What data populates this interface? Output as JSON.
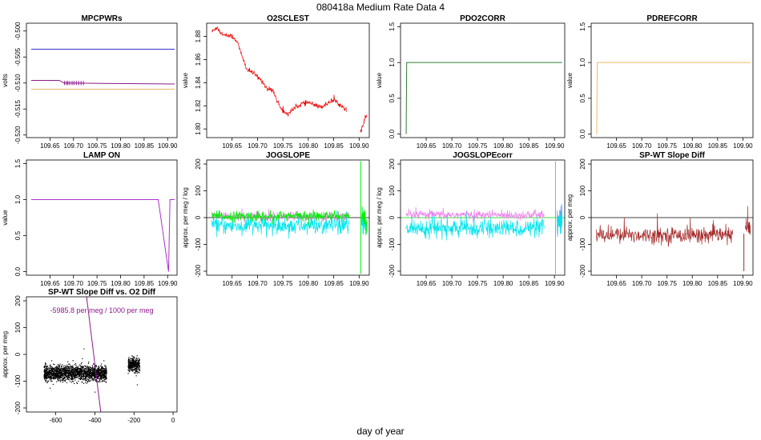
{
  "figure": {
    "title": "080418a   Medium Rate Data 4",
    "xlabel": "day of year"
  },
  "chart_data": [
    {
      "id": "mpcpwrs",
      "type": "line",
      "title": "MPCPWRs",
      "ylabel": "volts",
      "xlim": [
        109.6,
        109.92
      ],
      "ylim": [
        -0.5205,
        -0.4985
      ],
      "xticks": [
        109.65,
        109.7,
        109.75,
        109.8,
        109.85,
        109.9
      ],
      "xtick_labels": [
        "109.65",
        "109.70",
        "109.75",
        "109.80",
        "109.85",
        "109.90"
      ],
      "yticks": [
        -0.52,
        -0.515,
        -0.51,
        -0.505,
        -0.5
      ],
      "ytick_labels": [
        "-0.520",
        "-0.515",
        "-0.510",
        "-0.505",
        "-0.500"
      ],
      "series": [
        {
          "color": "#3333cc",
          "points": [
            [
              109.61,
              -0.5035
            ],
            [
              109.915,
              -0.5035
            ]
          ]
        },
        {
          "color": "#8b1a8b",
          "points": [
            [
              109.61,
              -0.5095
            ],
            [
              109.66,
              -0.5095
            ],
            [
              109.67,
              -0.5095
            ],
            [
              109.68,
              -0.51
            ],
            [
              109.915,
              -0.5102
            ]
          ]
        },
        {
          "color": "#f4b860",
          "points": [
            [
              109.61,
              -0.5112
            ],
            [
              109.915,
              -0.5112
            ]
          ]
        }
      ],
      "spikes": {
        "color": "#8b1a8b",
        "from": -0.5096,
        "to": -0.5104,
        "x": [
          109.681,
          109.685,
          109.688,
          109.692,
          109.697,
          109.701,
          109.706,
          109.711,
          109.716,
          109.721
        ]
      }
    },
    {
      "id": "o2sclest",
      "type": "line",
      "title": "O2SCLEST",
      "ylabel": "value",
      "xlim": [
        109.6,
        109.92
      ],
      "ylim": [
        1.7925,
        1.8915
      ],
      "xticks": [
        109.65,
        109.7,
        109.75,
        109.8,
        109.85,
        109.9
      ],
      "xtick_labels": [
        "109.65",
        "109.70",
        "109.75",
        "109.80",
        "109.85",
        "109.90"
      ],
      "yticks": [
        1.8,
        1.82,
        1.84,
        1.86,
        1.88
      ],
      "ytick_labels": [
        "1.80",
        "1.82",
        "1.84",
        "1.86",
        "1.88"
      ],
      "series": [
        {
          "color": "#ee0000",
          "noise": 0.0018,
          "points": [
            [
              109.61,
              1.884
            ],
            [
              109.62,
              1.888
            ],
            [
              109.63,
              1.882
            ],
            [
              109.65,
              1.88
            ],
            [
              109.66,
              1.876
            ],
            [
              109.67,
              1.862
            ],
            [
              109.68,
              1.851
            ],
            [
              109.69,
              1.849
            ],
            [
              109.7,
              1.845
            ],
            [
              109.71,
              1.841
            ],
            [
              109.72,
              1.834
            ],
            [
              109.73,
              1.834
            ],
            [
              109.74,
              1.823
            ],
            [
              109.75,
              1.815
            ],
            [
              109.76,
              1.813
            ],
            [
              109.77,
              1.817
            ],
            [
              109.78,
              1.82
            ],
            [
              109.79,
              1.822
            ],
            [
              109.8,
              1.823
            ],
            [
              109.81,
              1.821
            ],
            [
              109.82,
              1.819
            ],
            [
              109.83,
              1.82
            ],
            [
              109.84,
              1.823
            ],
            [
              109.85,
              1.825
            ],
            [
              109.86,
              1.822
            ],
            [
              109.87,
              1.818
            ],
            [
              109.875,
              1.817
            ]
          ]
        },
        {
          "color": "#ee0000",
          "noise": 0.0015,
          "points": [
            [
              109.902,
              1.797
            ],
            [
              109.905,
              1.8
            ],
            [
              109.908,
              1.803
            ],
            [
              109.91,
              1.807
            ],
            [
              109.915,
              1.812
            ]
          ]
        }
      ]
    },
    {
      "id": "pdo2corr",
      "type": "line",
      "title": "PDO2CORR",
      "ylabel": "value",
      "xlim": [
        109.6,
        109.92
      ],
      "ylim": [
        -0.05,
        1.55
      ],
      "xticks": [
        109.65,
        109.7,
        109.75,
        109.8,
        109.85,
        109.9
      ],
      "xtick_labels": [
        "109.65",
        "109.70",
        "109.75",
        "109.80",
        "109.85",
        "109.90"
      ],
      "yticks": [
        0.0,
        0.5,
        1.0,
        1.5
      ],
      "ytick_labels": [
        "0.0",
        "0.5",
        "1.0",
        "1.5"
      ],
      "series": [
        {
          "color": "#2e7d32",
          "points": [
            [
              109.611,
              0.0
            ],
            [
              109.612,
              1.0
            ],
            [
              109.915,
              1.0
            ]
          ]
        }
      ]
    },
    {
      "id": "pdrefcorr",
      "type": "line",
      "title": "PDREFCORR",
      "ylabel": "value",
      "xlim": [
        109.6,
        109.92
      ],
      "ylim": [
        -0.05,
        1.55
      ],
      "xticks": [
        109.65,
        109.7,
        109.75,
        109.8,
        109.85,
        109.9
      ],
      "xtick_labels": [
        "109.65",
        "109.70",
        "109.75",
        "109.80",
        "109.85",
        "109.90"
      ],
      "yticks": [
        0.0,
        0.5,
        1.0,
        1.5
      ],
      "ytick_labels": [
        "0.0",
        "0.5",
        "1.0",
        "1.5"
      ],
      "series": [
        {
          "color": "#f4b860",
          "points": [
            [
              109.611,
              0.0
            ],
            [
              109.612,
              1.0
            ],
            [
              109.915,
              1.0
            ]
          ]
        }
      ]
    },
    {
      "id": "lampon",
      "type": "line",
      "title": "LAMP ON",
      "ylabel": "value",
      "xlim": [
        109.6,
        109.92
      ],
      "ylim": [
        -0.05,
        1.55
      ],
      "xticks": [
        109.65,
        109.7,
        109.75,
        109.8,
        109.85,
        109.9
      ],
      "xtick_labels": [
        "109.65",
        "109.70",
        "109.75",
        "109.80",
        "109.85",
        "109.90"
      ],
      "yticks": [
        0.0,
        0.5,
        1.0,
        1.5
      ],
      "ytick_labels": [
        "0.0",
        "0.5",
        "1.0",
        "1.5"
      ],
      "series": [
        {
          "color": "#aa33cc",
          "points": [
            [
              109.61,
              1.0
            ],
            [
              109.88,
              1.0
            ],
            [
              109.902,
              0.0
            ],
            [
              109.905,
              1.0
            ],
            [
              109.915,
              1.0
            ]
          ]
        }
      ]
    },
    {
      "id": "jogslope",
      "type": "line",
      "title": "JOGSLOPE",
      "ylabel": "approx. per meg / log",
      "xlim": [
        109.6,
        109.92
      ],
      "ylim": [
        -215,
        215
      ],
      "xticks": [
        109.65,
        109.7,
        109.75,
        109.8,
        109.85,
        109.9
      ],
      "xtick_labels": [
        "109.65",
        "109.70",
        "109.75",
        "109.80",
        "109.85",
        "109.90"
      ],
      "yticks": [
        -200,
        -100,
        0,
        100,
        200
      ],
      "ytick_labels": [
        "-200",
        "-100",
        "0",
        "100",
        "200"
      ],
      "hline": {
        "y": 0,
        "color": "#000000"
      },
      "series": [
        {
          "color": "#00e5ee",
          "noise": 28,
          "points": [
            [
              109.61,
              -30
            ],
            [
              109.88,
              -30
            ]
          ]
        },
        {
          "color": "#ee82ee",
          "noise": 14,
          "points": [
            [
              109.61,
              5
            ],
            [
              109.88,
              5
            ]
          ]
        },
        {
          "color": "#00ee00",
          "noise": 16,
          "points": [
            [
              109.61,
              5
            ],
            [
              109.88,
              5
            ]
          ]
        },
        {
          "color": "#00e5ee",
          "noise": 30,
          "points": [
            [
              109.905,
              -20
            ],
            [
              109.915,
              -20
            ]
          ]
        },
        {
          "color": "#00ee00",
          "noise": 35,
          "points": [
            [
              109.905,
              0
            ],
            [
              109.915,
              0
            ]
          ]
        }
      ],
      "spikes": {
        "color": "#00ee00",
        "from": -210,
        "to": 210,
        "x": [
          109.903
        ]
      }
    },
    {
      "id": "jogslopecorr",
      "type": "line",
      "title": "JOGSLOPEcorr",
      "ylabel": "approx. per meg / log",
      "xlim": [
        109.6,
        109.92
      ],
      "ylim": [
        -215,
        215
      ],
      "xticks": [
        109.65,
        109.7,
        109.75,
        109.8,
        109.85,
        109.9
      ],
      "xtick_labels": [
        "109.65",
        "109.70",
        "109.75",
        "109.80",
        "109.85",
        "109.90"
      ],
      "yticks": [
        -200,
        -100,
        0,
        100,
        200
      ],
      "ytick_labels": [
        "-200",
        "-100",
        "0",
        "100",
        "200"
      ],
      "hline": {
        "y": 0,
        "color": "#00cc00"
      },
      "series": [
        {
          "color": "#00e5ee",
          "noise": 28,
          "points": [
            [
              109.61,
              -40
            ],
            [
              109.88,
              -40
            ]
          ]
        },
        {
          "color": "#ee82ee",
          "noise": 14,
          "points": [
            [
              109.61,
              10
            ],
            [
              109.88,
              10
            ]
          ]
        },
        {
          "color": "#6699ff",
          "noise": 40,
          "points": [
            [
              109.905,
              0
            ],
            [
              109.915,
              0
            ]
          ]
        },
        {
          "color": "#00e5ee",
          "noise": 40,
          "points": [
            [
              109.905,
              -20
            ],
            [
              109.915,
              -20
            ]
          ]
        }
      ],
      "spikes": {
        "color": "#00e5ee",
        "from": -210,
        "to": 210,
        "x": [
          109.902
        ]
      }
    },
    {
      "id": "spwtslopediff",
      "type": "line",
      "title": "SP-WT Slope Diff",
      "ylabel": "approx. per meg",
      "xlim": [
        109.6,
        109.92
      ],
      "ylim": [
        -215,
        215
      ],
      "xticks": [
        109.65,
        109.7,
        109.75,
        109.8,
        109.85,
        109.9
      ],
      "xtick_labels": [
        "109.65",
        "109.70",
        "109.75",
        "109.80",
        "109.85",
        "109.90"
      ],
      "yticks": [
        -200,
        -100,
        0,
        100,
        200
      ],
      "ytick_labels": [
        "-200",
        "-100",
        "0",
        "100",
        "200"
      ],
      "hline": {
        "y": 0,
        "color": "#000000"
      },
      "series": [
        {
          "color": "#a52a2a",
          "noise": 24,
          "points": [
            [
              109.61,
              -65
            ],
            [
              109.88,
              -65
            ]
          ]
        },
        {
          "color": "#a52a2a",
          "noise": 35,
          "points": [
            [
              109.905,
              -40
            ],
            [
              109.915,
              -40
            ]
          ]
        }
      ],
      "spikes": {
        "color": "#a52a2a",
        "from": -200,
        "to": -60,
        "x": [
          109.902
        ]
      }
    },
    {
      "id": "spwtvso2",
      "type": "scatter",
      "title": "SP-WT Slope Diff vs. O2 Diff",
      "ylabel": "approx. per meg",
      "xlim": [
        -750,
        20
      ],
      "ylim": [
        -215,
        215
      ],
      "xticks": [
        -600,
        -400,
        -200,
        0
      ],
      "xtick_labels": [
        "-600",
        "-400",
        "-200",
        "0"
      ],
      "yticks": [
        -200,
        -100,
        0,
        100,
        200
      ],
      "ytick_labels": [
        "-200",
        "-100",
        "0",
        "100",
        "200"
      ],
      "annotation": {
        "text": "-5985.8 per meg / 1000 per meg",
        "color": "#8b1a8b"
      },
      "fit_line": {
        "color": "#8b1a8b",
        "points": [
          [
            -445,
            230
          ],
          [
            -370,
            -215
          ]
        ]
      },
      "clusters": [
        {
          "color": "#000000",
          "count": 1800,
          "x_range": [
            -660,
            -340
          ],
          "y_mean": -70,
          "y_sd": 14
        },
        {
          "color": "#000000",
          "count": 350,
          "x_range": [
            -230,
            -170
          ],
          "y_mean": -40,
          "y_sd": 12
        }
      ]
    }
  ]
}
